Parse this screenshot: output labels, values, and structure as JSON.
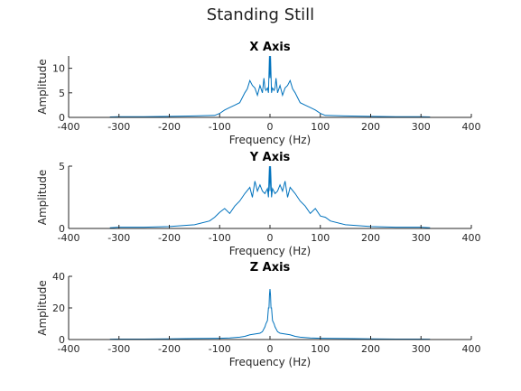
{
  "figure_title": "Standing Still",
  "colors": {
    "series": "#0072BD",
    "axis": "#262626",
    "background": "#ffffff"
  },
  "chart_data": [
    {
      "type": "line",
      "title": "X Axis",
      "xlabel": "Frequency (Hz)",
      "ylabel": "Amplitude",
      "xlim": [
        -400,
        400
      ],
      "ylim": [
        0,
        12.5
      ],
      "xticks": [
        -400,
        -300,
        -200,
        -100,
        0,
        100,
        200,
        300,
        400
      ],
      "yticks": [
        0,
        5,
        10
      ],
      "grid": false,
      "series": [
        {
          "x": [
            -318,
            -300,
            -250,
            -200,
            -150,
            -110,
            -100,
            -90,
            -80,
            -70,
            -60,
            -50,
            -45,
            -40,
            -35,
            -30,
            -25,
            -20,
            -15,
            -12,
            -10,
            -8,
            -5,
            -3,
            -2,
            -1,
            0,
            1,
            2,
            3,
            5,
            8,
            10,
            12,
            15,
            20,
            25,
            30,
            35,
            40,
            45,
            50,
            60,
            70,
            80,
            90,
            100,
            110,
            150,
            200,
            250,
            300,
            318
          ],
          "y": [
            0.1,
            0.15,
            0.15,
            0.2,
            0.3,
            0.4,
            0.8,
            1.5,
            2.0,
            2.5,
            3.0,
            5.0,
            5.8,
            7.5,
            6.5,
            6.0,
            4.5,
            6.5,
            5.0,
            8.0,
            6.0,
            5.5,
            6.0,
            5.0,
            9.0,
            12.5,
            8.0,
            12.5,
            9.0,
            5.0,
            6.0,
            5.5,
            6.0,
            8.0,
            5.0,
            6.5,
            4.5,
            6.0,
            6.5,
            7.5,
            5.8,
            5.0,
            3.0,
            2.5,
            2.0,
            1.5,
            0.8,
            0.4,
            0.3,
            0.2,
            0.15,
            0.15,
            0.1
          ]
        }
      ]
    },
    {
      "type": "line",
      "title": "Y Axis",
      "xlabel": "Frequency (Hz)",
      "ylabel": "Amplitude",
      "xlim": [
        -400,
        400
      ],
      "ylim": [
        0,
        5
      ],
      "xticks": [
        -400,
        -300,
        -200,
        -100,
        0,
        100,
        200,
        300,
        400
      ],
      "yticks": [
        0,
        5
      ],
      "grid": false,
      "series": [
        {
          "x": [
            -318,
            -300,
            -250,
            -200,
            -150,
            -120,
            -110,
            -100,
            -90,
            -80,
            -70,
            -60,
            -50,
            -40,
            -35,
            -30,
            -25,
            -20,
            -15,
            -10,
            -5,
            -3,
            -2,
            -1,
            0,
            1,
            2,
            3,
            5,
            10,
            15,
            20,
            25,
            30,
            35,
            40,
            50,
            60,
            70,
            80,
            90,
            100,
            110,
            120,
            150,
            200,
            250,
            300,
            318
          ],
          "y": [
            0.05,
            0.1,
            0.1,
            0.15,
            0.3,
            0.6,
            0.9,
            1.3,
            1.6,
            1.2,
            1.8,
            2.2,
            2.8,
            3.3,
            2.5,
            3.8,
            3.0,
            3.5,
            3.0,
            2.8,
            3.2,
            2.5,
            4.0,
            5.0,
            3.0,
            5.0,
            4.0,
            2.5,
            3.2,
            2.8,
            3.0,
            3.5,
            3.0,
            3.8,
            2.5,
            3.3,
            2.8,
            2.2,
            1.8,
            1.2,
            1.6,
            1.0,
            0.9,
            0.6,
            0.3,
            0.15,
            0.1,
            0.1,
            0.05
          ]
        }
      ]
    },
    {
      "type": "line",
      "title": "Z Axis",
      "xlabel": "Frequency (Hz)",
      "ylabel": "Amplitude",
      "xlim": [
        -400,
        400
      ],
      "ylim": [
        0,
        40
      ],
      "xticks": [
        -400,
        -300,
        -200,
        -100,
        0,
        100,
        200,
        300,
        400
      ],
      "yticks": [
        0,
        20,
        40
      ],
      "grid": false,
      "series": [
        {
          "x": [
            -318,
            -300,
            -250,
            -200,
            -150,
            -100,
            -80,
            -60,
            -50,
            -40,
            -30,
            -20,
            -15,
            -10,
            -8,
            -5,
            -3,
            -2,
            -1,
            0,
            1,
            2,
            3,
            5,
            8,
            10,
            15,
            20,
            30,
            40,
            50,
            60,
            80,
            100,
            150,
            200,
            250,
            300,
            318
          ],
          "y": [
            0.2,
            0.3,
            0.3,
            0.4,
            0.6,
            0.8,
            1.0,
            1.5,
            2.0,
            3.0,
            3.5,
            4.0,
            5.0,
            8.0,
            10.0,
            12.0,
            20.0,
            20.0,
            28.0,
            32.0,
            28.0,
            20.0,
            20.0,
            12.0,
            10.0,
            8.0,
            5.0,
            4.0,
            3.5,
            3.0,
            2.0,
            1.5,
            1.0,
            0.8,
            0.6,
            0.4,
            0.3,
            0.3,
            0.2
          ]
        }
      ]
    }
  ]
}
